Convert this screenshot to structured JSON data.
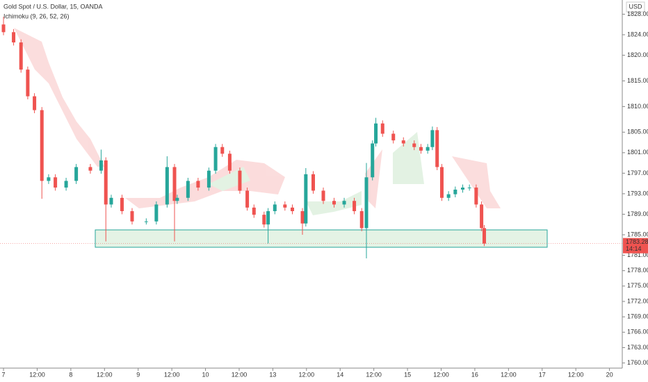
{
  "chart_data": {
    "type": "candlestick",
    "title": "Gold Spot / U.S. Dollar, 15, OANDA",
    "subtitle": "Ichimoku (9, 26, 52, 26)",
    "currency": "USD",
    "countdown": "14:14",
    "last_price": {
      "value": 1783.28,
      "label": "1783.280"
    },
    "up_color": "#26a69a",
    "down_color": "#ef5350",
    "xlim": [
      -0.052,
      9.19
    ],
    "ylim": [
      1759.0,
      1830.77
    ],
    "xticks": [
      {
        "value": 0,
        "label": "7"
      },
      {
        "value": 0.5,
        "label": "12:00"
      },
      {
        "value": 1,
        "label": "8"
      },
      {
        "value": 1.5,
        "label": "12:00"
      },
      {
        "value": 2,
        "label": "9"
      },
      {
        "value": 2.5,
        "label": "12:00"
      },
      {
        "value": 3,
        "label": "10"
      },
      {
        "value": 3.5,
        "label": "12:00"
      },
      {
        "value": 4,
        "label": "13"
      },
      {
        "value": 4.5,
        "label": "12:00"
      },
      {
        "value": 5,
        "label": "14"
      },
      {
        "value": 5.5,
        "label": "12:00"
      },
      {
        "value": 6,
        "label": "15"
      },
      {
        "value": 6.5,
        "label": "12:00"
      },
      {
        "value": 7,
        "label": "16"
      },
      {
        "value": 7.5,
        "label": "12:00"
      },
      {
        "value": 8,
        "label": "17"
      },
      {
        "value": 8.5,
        "label": "12:00"
      },
      {
        "value": 9,
        "label": "20"
      }
    ],
    "yticks": [
      {
        "value": 1828,
        "label": "1828.000"
      },
      {
        "value": 1824,
        "label": "1824.000"
      },
      {
        "value": 1820,
        "label": "1820.000"
      },
      {
        "value": 1815,
        "label": "1815.000"
      },
      {
        "value": 1810,
        "label": "1810.000"
      },
      {
        "value": 1805,
        "label": "1805.000"
      },
      {
        "value": 1801,
        "label": "1801.000"
      },
      {
        "value": 1797,
        "label": "1797.000"
      },
      {
        "value": 1793,
        "label": "1793.000"
      },
      {
        "value": 1789,
        "label": "1789.000"
      },
      {
        "value": 1785,
        "label": "1785.000"
      },
      {
        "value": 1781,
        "label": "1781.000"
      },
      {
        "value": 1778,
        "label": "1778.000"
      },
      {
        "value": 1775,
        "label": "1775.000"
      },
      {
        "value": 1772,
        "label": "1772.000"
      },
      {
        "value": 1769,
        "label": "1769.000"
      },
      {
        "value": 1766,
        "label": "1766.000"
      },
      {
        "value": 1763,
        "label": "1763.000"
      },
      {
        "value": 1760,
        "label": "1760.000"
      }
    ],
    "x": [
      0.0,
      0.15,
      0.26,
      0.36,
      0.46,
      0.57,
      0.67,
      0.77,
      0.93,
      1.08,
      1.29,
      1.45,
      1.52,
      1.6,
      1.76,
      1.91,
      2.12,
      2.27,
      2.43,
      2.54,
      2.58,
      2.74,
      2.89,
      3.05,
      3.15,
      3.25,
      3.36,
      3.51,
      3.62,
      3.72,
      3.87,
      3.93,
      4.03,
      4.18,
      4.29,
      4.44,
      4.49,
      4.6,
      4.75,
      4.91,
      5.06,
      5.21,
      5.32,
      5.39,
      5.48,
      5.53,
      5.63,
      5.79,
      5.94,
      6.1,
      6.2,
      6.3,
      6.37,
      6.44,
      6.51,
      6.61,
      6.71,
      6.82,
      6.92,
      7.02,
      7.1,
      7.14
    ],
    "open": [
      1826.0,
      1824.5,
      1822.5,
      1817.2,
      1812.0,
      1809.3,
      1795.5,
      1796.2,
      1794.2,
      1795.5,
      1798.2,
      1797.5,
      1799.5,
      1790.9,
      1792.2,
      1789.6,
      1787.6,
      1787.6,
      1790.9,
      1798.2,
      1791.6,
      1792.2,
      1795.5,
      1794.2,
      1797.5,
      1802.1,
      1800.8,
      1797.5,
      1793.6,
      1790.3,
      1788.9,
      1787.0,
      1789.6,
      1790.9,
      1790.3,
      1789.6,
      1787.2,
      1796.8,
      1793.6,
      1791.6,
      1790.9,
      1791.6,
      1789.6,
      1786.3,
      1796.2,
      1802.8,
      1806.7,
      1804.7,
      1803.4,
      1802.8,
      1802.1,
      1801.4,
      1802.1,
      1805.4,
      1798.2,
      1792.2,
      1792.9,
      1793.8,
      1794.2,
      1794.2,
      1790.9,
      1786.3
    ],
    "high": [
      1827.5,
      1825.1,
      1823.1,
      1817.8,
      1812.6,
      1809.9,
      1796.8,
      1796.8,
      1796.1,
      1798.8,
      1798.8,
      1801.6,
      1800.1,
      1792.8,
      1792.8,
      1790.2,
      1788.2,
      1791.5,
      1800.3,
      1798.8,
      1792.8,
      1796.1,
      1796.1,
      1798.1,
      1802.7,
      1802.7,
      1801.4,
      1798.1,
      1794.2,
      1790.9,
      1789.5,
      1790.2,
      1791.5,
      1791.5,
      1790.9,
      1790.2,
      1798.0,
      1797.4,
      1794.2,
      1792.2,
      1792.2,
      1792.2,
      1790.2,
      1799.0,
      1803.4,
      1807.8,
      1807.3,
      1805.3,
      1804.0,
      1803.4,
      1802.7,
      1802.7,
      1806.1,
      1806.0,
      1798.8,
      1793.5,
      1794.4,
      1794.8,
      1794.8,
      1794.8,
      1791.5,
      1786.9
    ],
    "low": [
      1823.9,
      1821.9,
      1816.6,
      1811.4,
      1808.7,
      1792.0,
      1794.9,
      1793.6,
      1793.6,
      1794.9,
      1796.9,
      1796.9,
      1783.7,
      1790.3,
      1789.0,
      1787.0,
      1787.0,
      1787.0,
      1790.3,
      1783.7,
      1791.0,
      1791.6,
      1793.6,
      1793.6,
      1796.9,
      1800.2,
      1796.9,
      1793.0,
      1789.7,
      1788.3,
      1786.4,
      1783.3,
      1789.0,
      1789.7,
      1789.0,
      1785.0,
      1786.6,
      1793.0,
      1791.0,
      1790.3,
      1790.3,
      1789.0,
      1785.7,
      1780.4,
      1795.6,
      1802.2,
      1804.1,
      1802.8,
      1802.2,
      1801.5,
      1800.8,
      1800.8,
      1801.5,
      1797.6,
      1791.6,
      1791.6,
      1792.3,
      1793.2,
      1793.6,
      1790.3,
      1785.7,
      1782.8
    ],
    "close": [
      1824.5,
      1822.5,
      1817.2,
      1812.0,
      1809.3,
      1795.5,
      1796.2,
      1794.2,
      1795.5,
      1798.2,
      1797.5,
      1799.5,
      1790.9,
      1792.2,
      1789.6,
      1787.6,
      1787.6,
      1790.9,
      1798.2,
      1791.6,
      1792.2,
      1795.5,
      1794.2,
      1797.5,
      1802.1,
      1800.8,
      1797.5,
      1793.6,
      1790.3,
      1788.9,
      1787.0,
      1789.6,
      1790.9,
      1790.3,
      1789.6,
      1787.2,
      1796.8,
      1793.6,
      1791.6,
      1790.9,
      1791.6,
      1789.6,
      1786.3,
      1796.2,
      1802.8,
      1806.7,
      1804.7,
      1803.4,
      1802.8,
      1802.1,
      1801.4,
      1802.1,
      1805.4,
      1798.2,
      1792.2,
      1792.9,
      1793.8,
      1794.2,
      1794.2,
      1790.9,
      1786.3,
      1783.28
    ]
  }
}
